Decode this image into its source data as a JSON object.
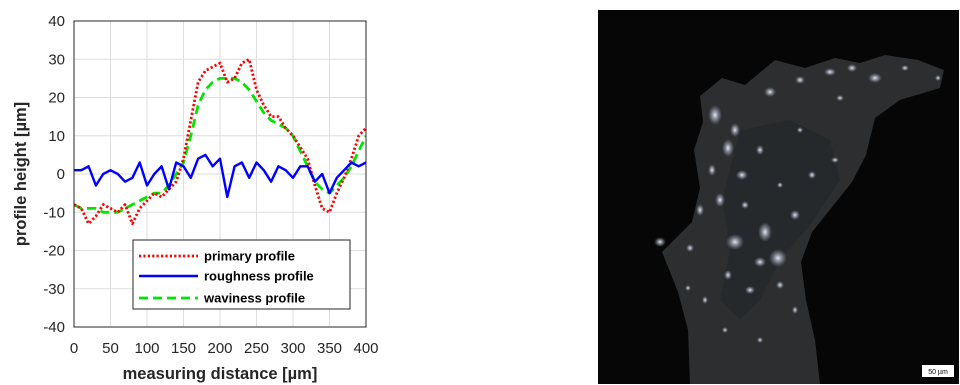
{
  "chart_data": {
    "type": "line",
    "xlabel": "measuring distance [µm]",
    "ylabel": "profile height [µm]",
    "xlim": [
      0,
      400
    ],
    "ylim": [
      -40,
      40
    ],
    "xticks": [
      0,
      50,
      100,
      150,
      200,
      250,
      300,
      350,
      400
    ],
    "yticks": [
      -40,
      -30,
      -20,
      -10,
      0,
      10,
      20,
      30,
      40
    ],
    "grid": true,
    "legend_position": "lower-right",
    "x": [
      0,
      10,
      20,
      30,
      40,
      50,
      60,
      70,
      80,
      90,
      100,
      110,
      120,
      130,
      140,
      150,
      160,
      170,
      180,
      190,
      200,
      210,
      220,
      230,
      240,
      250,
      260,
      270,
      280,
      290,
      300,
      310,
      320,
      330,
      340,
      350,
      360,
      370,
      380,
      390,
      400
    ],
    "series": [
      {
        "name": "primary profile",
        "color": "#ff0000",
        "style": "dotted",
        "values": [
          -8,
          -9,
          -13,
          -11,
          -8,
          -9,
          -10,
          -8,
          -13,
          -9,
          -7,
          -5,
          -6,
          -4,
          -2,
          4,
          14,
          24,
          27,
          28,
          29,
          24,
          25,
          29,
          30,
          22,
          18,
          15,
          15,
          12,
          10,
          7,
          4,
          -3,
          -9,
          -10,
          -5,
          -1,
          4,
          10,
          12
        ]
      },
      {
        "name": "roughness profile",
        "color": "#0000ff",
        "style": "solid",
        "values": [
          1,
          1,
          2,
          -3,
          0,
          1,
          0,
          -2,
          -1,
          3,
          -3,
          0,
          2,
          -4,
          3,
          2,
          -1,
          4,
          5,
          2,
          4,
          -6,
          2,
          3,
          -1,
          3,
          1,
          -2,
          2,
          1,
          -1,
          2,
          2,
          -2,
          0,
          -5,
          -1,
          1,
          3,
          2,
          3
        ]
      },
      {
        "name": "waviness profile",
        "color": "#00e600",
        "style": "dashed",
        "values": [
          -8,
          -9,
          -9,
          -9,
          -10,
          -10,
          -10,
          -9,
          -8,
          -7,
          -6,
          -5,
          -5,
          -3,
          0,
          3,
          10,
          18,
          22,
          24,
          25,
          25,
          25,
          24,
          22,
          19,
          16,
          14,
          13,
          12,
          10,
          6,
          2,
          -2,
          -4,
          -5,
          -3,
          -1,
          2,
          6,
          10
        ]
      }
    ]
  },
  "micrograph": {
    "scalebar_label": "50 µm"
  }
}
